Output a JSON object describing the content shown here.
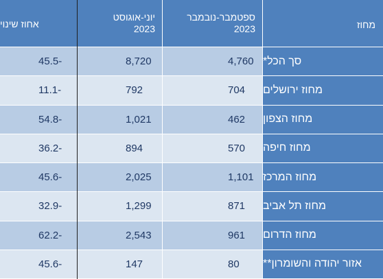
{
  "headers": {
    "district": "מחוז",
    "sep_nov": [
      "ספטמבר-נובמבר",
      "2023"
    ],
    "jun_aug": [
      "יוני-אוגוסט",
      "2023"
    ],
    "change": "אחוז שינוי"
  },
  "rows": [
    {
      "district": "סך הכל*",
      "sep_nov": "4,760",
      "jun_aug": "8,720",
      "change": "45.5-"
    },
    {
      "district": "מחוז ירושלים",
      "sep_nov": "704",
      "jun_aug": "792",
      "change": "11.1-"
    },
    {
      "district": "מחוז הצפון",
      "sep_nov": "462",
      "jun_aug": "1,021",
      "change": "54.8-"
    },
    {
      "district": "מחוז חיפה",
      "sep_nov": "570",
      "jun_aug": "894",
      "change": "36.2-"
    },
    {
      "district": "מחוז המרכז",
      "sep_nov": "1,101",
      "jun_aug": "2,025",
      "change": "45.6-"
    },
    {
      "district": "מחוז תל אביב",
      "sep_nov": "871",
      "jun_aug": "1,299",
      "change": "32.9-"
    },
    {
      "district": "מחוז הדרום",
      "sep_nov": "961",
      "jun_aug": "2,543",
      "change": "62.2-"
    },
    {
      "district": "אזור יהודה והשומרון**",
      "sep_nov": "80",
      "jun_aug": "147",
      "change": "45.6-"
    }
  ],
  "colors": {
    "header_bg": "#4f81bd",
    "row_dark": "#b8cce4",
    "row_light": "#dce6f1",
    "text_dark": "#1f3864"
  }
}
